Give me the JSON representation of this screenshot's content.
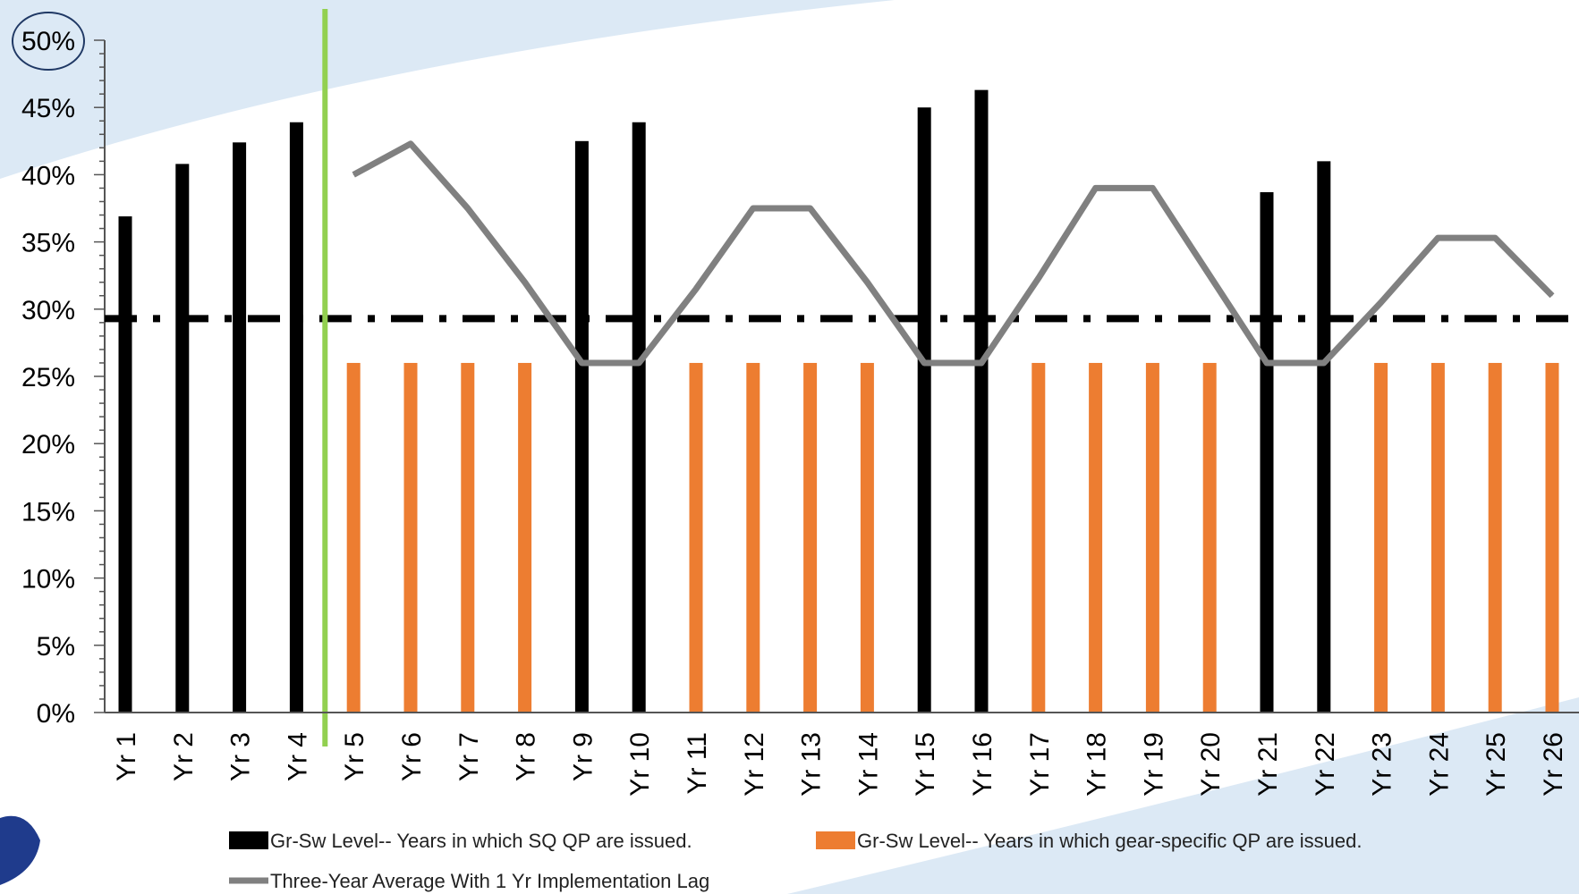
{
  "colors": {
    "sq_bar": "#000000",
    "gear_bar": "#ED7D31",
    "avg_line": "#808080",
    "threshold": "#000000",
    "impl_marker": "#92D050",
    "background_band": "#DCE9F5"
  },
  "chart_data": {
    "type": "bar",
    "categories": [
      "Yr 1",
      "Yr 2",
      "Yr 3",
      "Yr 4",
      "Yr 5",
      "Yr 6",
      "Yr 7",
      "Yr 8",
      "Yr 9",
      "Yr 10",
      "Yr 11",
      "Yr 12",
      "Yr 13",
      "Yr 14",
      "Yr 15",
      "Yr 16",
      "Yr 17",
      "Yr 18",
      "Yr 19",
      "Yr 20",
      "Yr 21",
      "Yr 22",
      "Yr 23",
      "Yr 24",
      "Yr 25",
      "Yr 26"
    ],
    "series": [
      {
        "name": "Gr-Sw Level-- Years in which SQ QP are issued.",
        "type": "bar",
        "values": [
          36.9,
          40.8,
          42.4,
          43.9,
          null,
          null,
          null,
          null,
          42.5,
          43.9,
          null,
          null,
          null,
          null,
          45.0,
          46.3,
          null,
          null,
          null,
          null,
          38.7,
          41.0,
          null,
          null,
          null,
          null
        ]
      },
      {
        "name": "Gr-Sw Level-- Years in which gear-specific QP are issued.",
        "type": "bar",
        "values": [
          null,
          null,
          null,
          null,
          26,
          26,
          26,
          26,
          null,
          null,
          26,
          26,
          26,
          26,
          null,
          null,
          26,
          26,
          26,
          26,
          null,
          null,
          26,
          26,
          26,
          26
        ]
      },
      {
        "name": "Three-Year Average With 1 Yr Implementation Lag",
        "type": "line",
        "values": [
          null,
          null,
          null,
          null,
          40.0,
          42.3,
          37.5,
          32.0,
          26.0,
          26.0,
          31.5,
          37.5,
          37.5,
          32.0,
          26.0,
          26.0,
          32.3,
          39.0,
          39.0,
          32.5,
          26.0,
          26.0,
          30.5,
          35.3,
          35.3,
          31.0
        ]
      }
    ],
    "threshold": 29.3,
    "implementation_marker_after": "Yr 4",
    "ylim": [
      0,
      50
    ],
    "yticks": [
      "0%",
      "5%",
      "10%",
      "15%",
      "20%",
      "25%",
      "30%",
      "35%",
      "40%",
      "45%",
      "50%"
    ],
    "ytick_values": [
      0,
      5,
      10,
      15,
      20,
      25,
      30,
      35,
      40,
      45,
      50
    ],
    "highlighted_tick": "50%",
    "xlabel": "",
    "ylabel": "",
    "legend_position": "bottom",
    "grid": false
  }
}
